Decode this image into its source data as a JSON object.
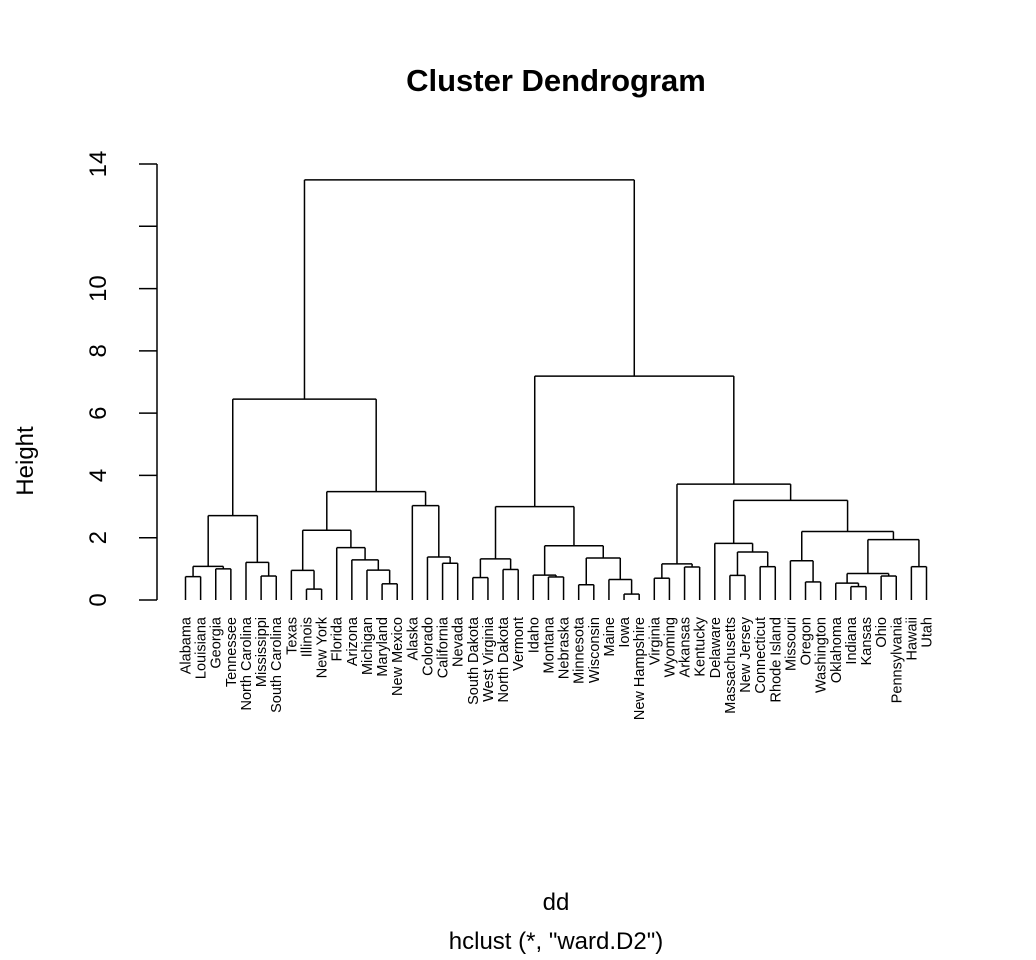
{
  "chart_data": {
    "type": "dendrogram",
    "title": "Cluster Dendrogram",
    "ylabel": "Height",
    "xlabel": "dd",
    "sublabel": "hclust (*, \"ward.D2\")",
    "ylim": [
      0,
      14
    ],
    "yticks": [
      0,
      2,
      4,
      6,
      8,
      10,
      12,
      14
    ],
    "ytick_labels": [
      "0",
      "2",
      "4",
      "6",
      "8",
      "10",
      "",
      "14"
    ],
    "grid": false,
    "labels": [
      "Alabama",
      "Louisiana",
      "Georgia",
      "Tennessee",
      "North Carolina",
      "Mississippi",
      "South Carolina",
      "Texas",
      "Illinois",
      "New York",
      "Florida",
      "Arizona",
      "Michigan",
      "Maryland",
      "New Mexico",
      "Alaska",
      "Colorado",
      "California",
      "Nevada",
      "South Dakota",
      "West Virginia",
      "North Dakota",
      "Vermont",
      "Idaho",
      "Montana",
      "Nebraska",
      "Minnesota",
      "Wisconsin",
      "Maine",
      "Iowa",
      "New Hampshire",
      "Virginia",
      "Wyoming",
      "Arkansas",
      "Kentucky",
      "Delaware",
      "Massachusetts",
      "New Jersey",
      "Connecticut",
      "Rhode Island",
      "Missouri",
      "Oregon",
      "Washington",
      "Oklahoma",
      "Indiana",
      "Kansas",
      "Ohio",
      "Pennsylvania",
      "Hawaii",
      "Utah"
    ],
    "tree": {
      "h": 13.49,
      "c": [
        {
          "h": 6.45,
          "c": [
            {
              "h": 2.71,
              "c": [
                {
                  "h": 1.08,
                  "c": [
                    {
                      "h": 0.75,
                      "c": [
                        "Alabama",
                        "Louisiana"
                      ]
                    },
                    {
                      "h": 1.0,
                      "c": [
                        "Georgia",
                        "Tennessee"
                      ]
                    }
                  ]
                },
                {
                  "h": 1.21,
                  "c": [
                    "North Carolina",
                    {
                      "h": 0.77,
                      "c": [
                        "Mississippi",
                        "South Carolina"
                      ]
                    }
                  ]
                }
              ]
            },
            {
              "h": 3.48,
              "c": [
                {
                  "h": 2.24,
                  "c": [
                    {
                      "h": 0.95,
                      "c": [
                        "Texas",
                        {
                          "h": 0.35,
                          "c": [
                            "Illinois",
                            "New York"
                          ]
                        }
                      ]
                    },
                    {
                      "h": 1.68,
                      "c": [
                        "Florida",
                        {
                          "h": 1.29,
                          "c": [
                            "Arizona",
                            {
                              "h": 0.96,
                              "c": [
                                "Michigan",
                                {
                                  "h": 0.52,
                                  "c": [
                                    "Maryland",
                                    "New Mexico"
                                  ]
                                }
                              ]
                            }
                          ]
                        }
                      ]
                    }
                  ]
                },
                {
                  "h": 3.03,
                  "c": [
                    "Alaska",
                    {
                      "h": 1.38,
                      "c": [
                        "Colorado",
                        {
                          "h": 1.18,
                          "c": [
                            "California",
                            "Nevada"
                          ]
                        }
                      ]
                    }
                  ]
                }
              ]
            }
          ]
        },
        {
          "h": 7.19,
          "c": [
            {
              "h": 3.0,
              "c": [
                {
                  "h": 1.32,
                  "c": [
                    {
                      "h": 0.72,
                      "c": [
                        "South Dakota",
                        "West Virginia"
                      ]
                    },
                    {
                      "h": 0.98,
                      "c": [
                        "North Dakota",
                        "Vermont"
                      ]
                    }
                  ]
                },
                {
                  "h": 1.74,
                  "c": [
                    {
                      "h": 0.8,
                      "c": [
                        "Idaho",
                        {
                          "h": 0.74,
                          "c": [
                            "Montana",
                            "Nebraska"
                          ]
                        }
                      ]
                    },
                    {
                      "h": 1.35,
                      "c": [
                        {
                          "h": 0.49,
                          "c": [
                            "Minnesota",
                            "Wisconsin"
                          ]
                        },
                        {
                          "h": 0.66,
                          "c": [
                            "Maine",
                            {
                              "h": 0.19,
                              "c": [
                                "Iowa",
                                "New Hampshire"
                              ]
                            }
                          ]
                        }
                      ]
                    }
                  ]
                }
              ]
            },
            {
              "h": 3.72,
              "c": [
                {
                  "h": 1.16,
                  "c": [
                    {
                      "h": 0.7,
                      "c": [
                        "Virginia",
                        "Wyoming"
                      ]
                    },
                    {
                      "h": 1.06,
                      "c": [
                        "Arkansas",
                        "Kentucky"
                      ]
                    }
                  ]
                },
                {
                  "h": 3.2,
                  "c": [
                    {
                      "h": 1.82,
                      "c": [
                        "Delaware",
                        {
                          "h": 1.54,
                          "c": [
                            {
                              "h": 0.79,
                              "c": [
                                "Massachusetts",
                                "New Jersey"
                              ]
                            },
                            {
                              "h": 1.07,
                              "c": [
                                "Connecticut",
                                "Rhode Island"
                              ]
                            }
                          ]
                        }
                      ]
                    },
                    {
                      "h": 2.2,
                      "c": [
                        {
                          "h": 1.26,
                          "c": [
                            "Missouri",
                            {
                              "h": 0.58,
                              "c": [
                                "Oregon",
                                "Washington"
                              ]
                            }
                          ]
                        },
                        {
                          "h": 1.94,
                          "c": [
                            {
                              "h": 0.85,
                              "c": [
                                {
                                  "h": 0.54,
                                  "c": [
                                    "Oklahoma",
                                    {
                                      "h": 0.43,
                                      "c": [
                                        "Indiana",
                                        "Kansas"
                                      ]
                                    }
                                  ]
                                },
                                {
                                  "h": 0.77,
                                  "c": [
                                    "Ohio",
                                    "Pennsylvania"
                                  ]
                                }
                              ]
                            },
                            {
                              "h": 1.07,
                              "c": [
                                "Hawaii",
                                "Utah"
                              ]
                            }
                          ]
                        }
                      ]
                    }
                  ]
                }
              ]
            }
          ]
        }
      ]
    }
  }
}
